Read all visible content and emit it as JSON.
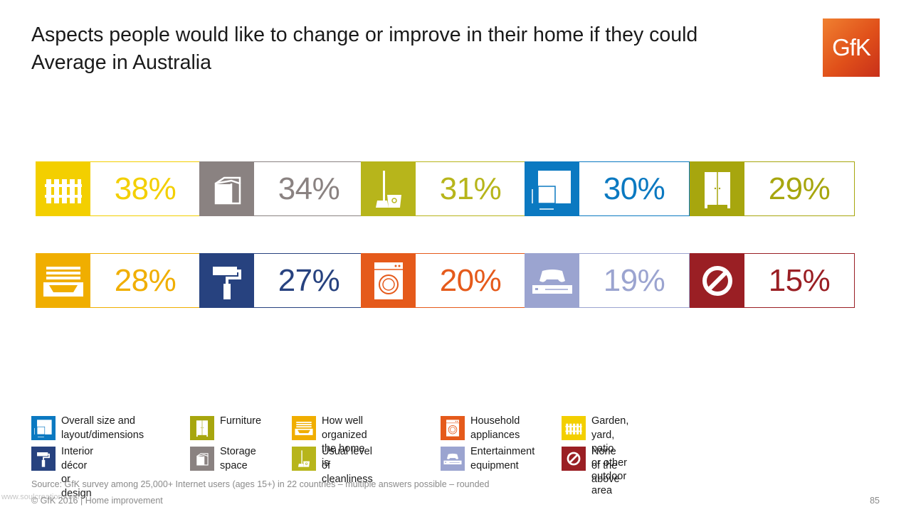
{
  "title": {
    "line1": "Aspects people would like to change or improve in their home if they could",
    "line2": "Average in Australia"
  },
  "logo_text": "GfK",
  "chart_data": {
    "type": "table",
    "categories": [
      "Garden, yard, patio or other outdoor area",
      "Storage space",
      "Usual level of cleanliness",
      "Overall size and layout/dimensions",
      "Furniture",
      "How well organized the home is",
      "Interior décor or design",
      "Household appliances",
      "Entertainment equipment",
      "None of the above"
    ],
    "values": [
      38,
      34,
      31,
      30,
      29,
      28,
      27,
      20,
      19,
      15
    ],
    "labels": [
      "38%",
      "34%",
      "31%",
      "30%",
      "29%",
      "28%",
      "27%",
      "20%",
      "19%",
      "15%"
    ],
    "icons": [
      "fence-icon",
      "box-icon",
      "mop-bucket-icon",
      "floorplan-icon",
      "wardrobe-icon",
      "drawer-icon",
      "paint-roller-icon",
      "washing-machine-icon",
      "game-console-icon",
      "none-icon"
    ],
    "colors": [
      "#f3cf00",
      "#8a8281",
      "#b7b51b",
      "#0b79c1",
      "#a7a60e",
      "#f0ae00",
      "#27427f",
      "#e55a1b",
      "#9ba4d0",
      "#9a1f24"
    ]
  },
  "legend": [
    {
      "icon": "floorplan-icon",
      "line1": "Overall size and",
      "line2": "layout/dimensions",
      "color": "#0b79c1"
    },
    {
      "icon": "wardrobe-icon",
      "line1": "Furniture",
      "line2": "",
      "color": "#a7a60e"
    },
    {
      "icon": "drawer-icon",
      "line1": "How well organized",
      "line2": "the home is",
      "color": "#f0ae00"
    },
    {
      "icon": "washing-machine-icon",
      "line1": "Household",
      "line2": "appliances",
      "color": "#e55a1b"
    },
    {
      "icon": "fence-icon",
      "line1": "Garden, yard, patio",
      "line2": "or other outdoor area",
      "color": "#f3cf00"
    },
    {
      "icon": "paint-roller-icon",
      "line1": "Interior décor",
      "line2": "or design",
      "color": "#27427f"
    },
    {
      "icon": "box-icon",
      "line1": "Storage",
      "line2": "space",
      "color": "#8a8281"
    },
    {
      "icon": "mop-bucket-icon",
      "line1": "Usual level",
      "line2": "of cleanliness",
      "color": "#b7b51b"
    },
    {
      "icon": "game-console-icon",
      "line1": "Entertainment",
      "line2": "equipment",
      "color": "#9ba4d0"
    },
    {
      "icon": "none-icon",
      "line1": "None of the",
      "line2": "above",
      "color": "#9a1f24"
    }
  ],
  "source": "Source: GfK survey among 25,000+ Internet users (ages 15+) in 22 countries – multiple answers possible – rounded",
  "footer": "© GfK 2016 | Home improvement",
  "watermark": "www.soulcreation.com",
  "page_number": "85"
}
